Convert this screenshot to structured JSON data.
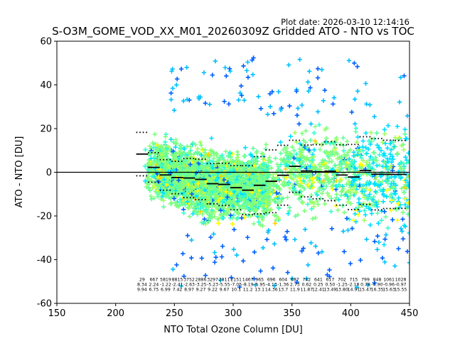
{
  "chart_data": {
    "type": "scatter",
    "plot_date": "Plot date: 2026-03-10 12:14:16",
    "title": "S-O3M_GOME_VOD_XX_M01_20260309Z Gridded ATO - NTO vs TOC",
    "xlabel": "NTO Total Ozone Column [DU]",
    "ylabel": "ATO - NTO [DU]",
    "xlim": [
      150,
      450
    ],
    "ylim": [
      -60,
      60
    ],
    "xticks": [
      150,
      200,
      250,
      300,
      350,
      400,
      450
    ],
    "yticks": [
      -60,
      -40,
      -20,
      0,
      20,
      40,
      60
    ],
    "zero_line": 0,
    "marker": "+",
    "point_colors": [
      "#7fff7f",
      "#5fffa0",
      "#9fff5f",
      "#30ffd0",
      "#00e0ff",
      "#00c0ff",
      "#ffff00",
      "#ffd000",
      "#0060ff",
      "#0030e0"
    ],
    "bins": [
      {
        "x": 222.5,
        "count": "29",
        "mean": "8.34",
        "std": "9.94",
        "mean_val": 8.34,
        "std_val": 9.94
      },
      {
        "x": 232.5,
        "count": "667",
        "mean": "2.24",
        "std": "6.75",
        "mean_val": 2.24,
        "std_val": 6.75
      },
      {
        "x": 242.5,
        "count": "5819",
        "mean": "-1.22",
        "std": "6.99",
        "mean_val": -1.22,
        "std_val": 6.99
      },
      {
        "x": 252.5,
        "count": "8815",
        "mean": "-2.41",
        "std": "7.42",
        "mean_val": -2.41,
        "std_val": 7.42
      },
      {
        "x": 262.5,
        "count": "3752",
        "mean": "-2.63",
        "std": "8.97",
        "mean_val": -2.63,
        "std_val": 8.97
      },
      {
        "x": 272.5,
        "count": "2886",
        "mean": "-3.25",
        "std": "9.27",
        "mean_val": -3.25,
        "std_val": 9.27
      },
      {
        "x": 282.5,
        "count": "3297",
        "mean": "-5.23",
        "std": "9.22",
        "mean_val": -5.23,
        "std_val": 9.22
      },
      {
        "x": 292.5,
        "count": "2811",
        "mean": "-5.55",
        "std": "9.67",
        "mean_val": -5.55,
        "std_val": 9.67
      },
      {
        "x": 302.5,
        "count": "2151",
        "mean": "-7.05",
        "std": "10.1",
        "mean_val": -7.05,
        "std_val": 10.1
      },
      {
        "x": 312.5,
        "count": "1467",
        "mean": "-8.19",
        "std": "11.2",
        "mean_val": -8.19,
        "std_val": 11.2
      },
      {
        "x": 322.5,
        "count": "965",
        "mean": "-5.95",
        "std": "13.1",
        "mean_val": -5.95,
        "std_val": 13.1
      },
      {
        "x": 332.5,
        "count": "696",
        "mean": "-4.13",
        "std": "14.36",
        "mean_val": -4.13,
        "std_val": 14.36
      },
      {
        "x": 342.5,
        "count": "604",
        "mean": "-1.36",
        "std": "13.7",
        "mean_val": -1.36,
        "std_val": 13.7
      },
      {
        "x": 352.5,
        "count": "687",
        "mean": "2.73",
        "std": "11.9",
        "mean_val": 2.73,
        "std_val": 11.9
      },
      {
        "x": 362.5,
        "count": "742",
        "mean": "0.62",
        "std": "11.87",
        "mean_val": 0.62,
        "std_val": 11.87
      },
      {
        "x": 372.5,
        "count": "641",
        "mean": "0.25",
        "std": "12.41",
        "mean_val": 0.25,
        "std_val": 12.41
      },
      {
        "x": 382.5,
        "count": "617",
        "mean": "0.50",
        "std": "13.49",
        "mean_val": 0.5,
        "std_val": 13.49
      },
      {
        "x": 392.5,
        "count": "702",
        "mean": "-1.25",
        "std": "13.80",
        "mean_val": -1.25,
        "std_val": 13.8
      },
      {
        "x": 402.5,
        "count": "715",
        "mean": "-2.18",
        "std": "14.91",
        "mean_val": -2.18,
        "std_val": 14.91
      },
      {
        "x": 412.5,
        "count": "799",
        "mean": "0.78",
        "std": "15.47",
        "mean_val": 0.78,
        "std_val": 15.47
      },
      {
        "x": 422.5,
        "count": "848",
        "mean": "-0.90",
        "std": "16.35",
        "mean_val": -0.9,
        "std_val": 16.35
      },
      {
        "x": 432.5,
        "count": "1061",
        "mean": "-0.96",
        "std": "15.63",
        "mean_val": -0.96,
        "std_val": 15.63
      },
      {
        "x": 442.5,
        "count": "1028",
        "mean": "-0.97",
        "std": "15.55",
        "mean_val": -0.97,
        "std_val": 15.55
      }
    ]
  }
}
